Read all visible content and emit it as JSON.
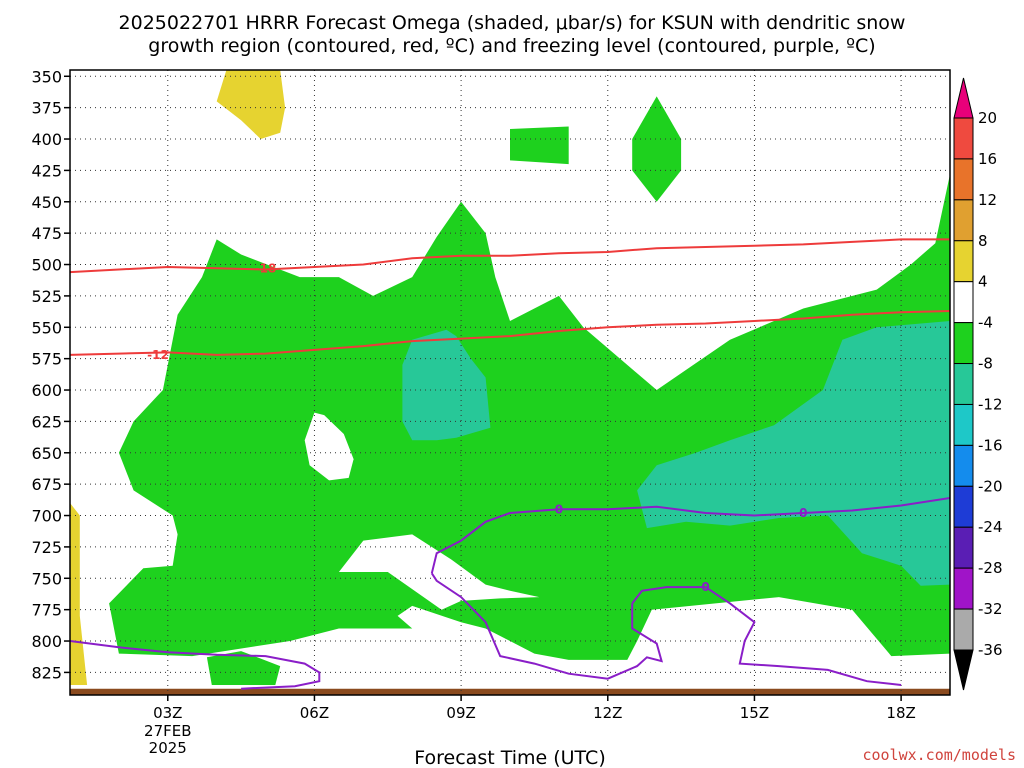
{
  "chart_data": {
    "type": "heatmap",
    "title_line1": "2025022701 HRRR Forecast Omega (shaded, μbar/s) for KSUN with dendritic snow",
    "title_line2": "growth region (contoured, red, ºC) and freezing level (contoured, purple, ºC)",
    "xlabel": "Forecast Time (UTC)",
    "ylabel": "",
    "x_axis": {
      "range_hours": [
        1,
        19
      ],
      "ticks": [
        {
          "hour": 3,
          "label": "03Z",
          "sub1": "27FEB",
          "sub2": "2025"
        },
        {
          "hour": 6,
          "label": "06Z"
        },
        {
          "hour": 9,
          "label": "09Z"
        },
        {
          "hour": 12,
          "label": "12Z"
        },
        {
          "hour": 15,
          "label": "15Z"
        },
        {
          "hour": 18,
          "label": "18Z"
        }
      ]
    },
    "y_axis": {
      "range_hpa": [
        345,
        843
      ],
      "ticks": [
        350,
        375,
        400,
        425,
        450,
        475,
        500,
        525,
        550,
        575,
        600,
        625,
        650,
        675,
        700,
        725,
        750,
        775,
        800,
        825
      ]
    },
    "grid": true,
    "colorbar": {
      "levels": [
        20,
        16,
        12,
        8,
        4,
        -4,
        -8,
        -12,
        -16,
        -20,
        -24,
        -28,
        -32,
        -36
      ],
      "colors": [
        "#e8007a",
        "#ef4a3f",
        "#e8732a",
        "#e0a030",
        "#e6d330",
        "#ffffff",
        "#1ed11e",
        "#27c898",
        "#1ec8c8",
        "#148ced",
        "#1e3cd6",
        "#5a1eb4",
        "#a014c8",
        "#aaaaaa",
        "#000000"
      ]
    },
    "shaded_regions": [
      {
        "color": "#1ed11e",
        "omega": "-4 to -8",
        "pts": [
          [
            3.1,
            700
          ],
          [
            2.3,
            680
          ],
          [
            2.0,
            650
          ],
          [
            2.3,
            625
          ],
          [
            2.9,
            600
          ],
          [
            3.2,
            540
          ],
          [
            3.7,
            510
          ],
          [
            4.0,
            480
          ],
          [
            4.5,
            492
          ],
          [
            5.7,
            510
          ],
          [
            6.5,
            510
          ],
          [
            7.2,
            525
          ],
          [
            8.0,
            510
          ],
          [
            8.5,
            478
          ],
          [
            9.0,
            450
          ],
          [
            9.5,
            475
          ],
          [
            9.7,
            510
          ],
          [
            10.0,
            545
          ],
          [
            11.0,
            525
          ],
          [
            11.5,
            550
          ],
          [
            13.0,
            600
          ],
          [
            14.5,
            560
          ],
          [
            16.0,
            535
          ],
          [
            17.5,
            520
          ],
          [
            18.2,
            500
          ],
          [
            18.7,
            483
          ],
          [
            19.0,
            428
          ],
          [
            19.0,
            810
          ],
          [
            17.8,
            812
          ],
          [
            17.0,
            775
          ],
          [
            15.5,
            765
          ],
          [
            12.9,
            775
          ],
          [
            12.6,
            800
          ],
          [
            12.4,
            815
          ],
          [
            11.2,
            815
          ],
          [
            10.5,
            810
          ],
          [
            10.0,
            800
          ],
          [
            9.5,
            790
          ],
          [
            9.0,
            785
          ],
          [
            8.0,
            772
          ],
          [
            7.7,
            780
          ],
          [
            8.0,
            790
          ],
          [
            6.5,
            790
          ],
          [
            5.5,
            800
          ],
          [
            3.5,
            812
          ],
          [
            2.0,
            810
          ],
          [
            1.8,
            770
          ],
          [
            2.5,
            742
          ],
          [
            3.1,
            740
          ],
          [
            3.2,
            715
          ]
        ]
      },
      {
        "color": "#27c898",
        "omega": "-8 to -12",
        "pts": [
          [
            8.7,
            552
          ],
          [
            8.9,
            557
          ],
          [
            9.2,
            575
          ],
          [
            9.5,
            590
          ],
          [
            9.6,
            630
          ],
          [
            8.9,
            638
          ],
          [
            8.5,
            640
          ],
          [
            8.0,
            640
          ],
          [
            7.8,
            625
          ],
          [
            7.8,
            580
          ],
          [
            8.0,
            560
          ]
        ]
      },
      {
        "color": "#27c898",
        "omega": "-8 to -12",
        "pts": [
          [
            16.8,
            560
          ],
          [
            17.5,
            550
          ],
          [
            19.0,
            545
          ],
          [
            19.0,
            755
          ],
          [
            18.4,
            756
          ],
          [
            18.0,
            740
          ],
          [
            17.2,
            730
          ],
          [
            16.5,
            700
          ],
          [
            15.5,
            702
          ],
          [
            14.5,
            708
          ],
          [
            13.6,
            705
          ],
          [
            12.8,
            710
          ],
          [
            12.6,
            680
          ],
          [
            13.0,
            660
          ],
          [
            13.8,
            650
          ],
          [
            14.5,
            640
          ],
          [
            15.4,
            628
          ],
          [
            16.4,
            600
          ]
        ]
      },
      {
        "color": "#ffffff",
        "omega": "4 to -4",
        "pts": [
          [
            6.2,
            620
          ],
          [
            6.0,
            618
          ],
          [
            5.8,
            640
          ],
          [
            5.9,
            660
          ],
          [
            6.3,
            672
          ],
          [
            6.7,
            670
          ],
          [
            6.8,
            655
          ],
          [
            6.6,
            635
          ]
        ]
      },
      {
        "color": "#ffffff",
        "omega": "4 to -4",
        "pts": [
          [
            6.5,
            745
          ],
          [
            7.0,
            720
          ],
          [
            8.0,
            715
          ],
          [
            8.8,
            735
          ],
          [
            9.5,
            755
          ],
          [
            10.0,
            760
          ],
          [
            10.6,
            765
          ],
          [
            9.8,
            766
          ],
          [
            9.0,
            768
          ],
          [
            8.6,
            775
          ],
          [
            7.5,
            745
          ]
        ]
      },
      {
        "color": "#1ed11e",
        "omega": "-4 to -8",
        "pts": [
          [
            10.0,
            392
          ],
          [
            11.2,
            390
          ],
          [
            11.2,
            420
          ],
          [
            10.0,
            417
          ]
        ]
      },
      {
        "color": "#1ed11e",
        "omega": "-4 to -8",
        "pts": [
          [
            13.0,
            366
          ],
          [
            13.5,
            400
          ],
          [
            13.5,
            425
          ],
          [
            13.0,
            450
          ],
          [
            12.5,
            425
          ],
          [
            12.5,
            400
          ]
        ]
      },
      {
        "color": "#1ed11e",
        "omega": "-4 to -8",
        "pts": [
          [
            3.8,
            813
          ],
          [
            4.5,
            808
          ],
          [
            5.3,
            820
          ],
          [
            5.2,
            835
          ],
          [
            3.9,
            835
          ]
        ]
      },
      {
        "color": "#e6d330",
        "omega": "4 to 8",
        "pts": [
          [
            4.2,
            345
          ],
          [
            5.3,
            345
          ],
          [
            5.4,
            375
          ],
          [
            5.3,
            395
          ],
          [
            4.9,
            400
          ],
          [
            4.5,
            385
          ],
          [
            4.0,
            370
          ]
        ]
      },
      {
        "color": "#e6d330",
        "omega": "4 to 8",
        "pts": [
          [
            1.0,
            690
          ],
          [
            1.2,
            700
          ],
          [
            1.2,
            780
          ],
          [
            1.35,
            835
          ],
          [
            1.0,
            835
          ]
        ]
      },
      {
        "color": "#8a4a1e",
        "omega": "ground",
        "pts": [
          [
            1.0,
            838
          ],
          [
            19.0,
            838
          ],
          [
            19.0,
            843
          ],
          [
            1.0,
            843
          ]
        ]
      }
    ],
    "dgz_contours": [
      {
        "label": "-18",
        "label_at": [
          5.0,
          503
        ],
        "pts": [
          [
            1.0,
            506
          ],
          [
            2.0,
            504
          ],
          [
            3.0,
            502
          ],
          [
            4.0,
            503
          ],
          [
            5.0,
            504
          ],
          [
            6.0,
            502
          ],
          [
            7.0,
            500
          ],
          [
            8.0,
            495
          ],
          [
            9.0,
            493
          ],
          [
            10.0,
            493
          ],
          [
            11.0,
            491
          ],
          [
            12.0,
            490
          ],
          [
            13.0,
            487
          ],
          [
            14.0,
            486
          ],
          [
            15.0,
            485
          ],
          [
            16.0,
            484
          ],
          [
            17.0,
            482
          ],
          [
            18.0,
            480
          ],
          [
            19.0,
            480
          ]
        ]
      },
      {
        "label": "-12",
        "label_at": [
          2.8,
          572
        ],
        "pts": [
          [
            1.0,
            572
          ],
          [
            2.0,
            571
          ],
          [
            3.0,
            570
          ],
          [
            4.0,
            572
          ],
          [
            5.0,
            571
          ],
          [
            6.0,
            568
          ],
          [
            7.0,
            565
          ],
          [
            8.0,
            561
          ],
          [
            9.0,
            559
          ],
          [
            10.0,
            557
          ],
          [
            11.0,
            553
          ],
          [
            12.0,
            550
          ],
          [
            13.0,
            548
          ],
          [
            14.0,
            547
          ],
          [
            15.0,
            545
          ],
          [
            16.0,
            543
          ],
          [
            17.0,
            540
          ],
          [
            18.0,
            538
          ],
          [
            19.0,
            537
          ]
        ]
      }
    ],
    "freezing_contours": [
      {
        "label": "0",
        "label_at": [
          11.0,
          695
        ],
        "pts": [
          [
            8.4,
            746
          ],
          [
            8.5,
            730
          ],
          [
            9.0,
            720
          ],
          [
            9.5,
            705
          ],
          [
            10.0,
            698
          ],
          [
            11.0,
            695
          ],
          [
            12.0,
            695
          ],
          [
            13.0,
            693
          ],
          [
            14.0,
            698
          ],
          [
            15.0,
            700
          ],
          [
            16.0,
            698
          ],
          [
            17.0,
            696
          ],
          [
            18.0,
            692
          ],
          [
            19.0,
            686
          ]
        ]
      },
      {
        "label": "0",
        "label_at": [
          16.0,
          698
        ],
        "pts": []
      },
      {
        "label": "0",
        "label_at": [
          14.0,
          757
        ],
        "pts": [
          [
            12.5,
            770
          ],
          [
            12.7,
            760
          ],
          [
            13.2,
            757
          ],
          [
            14.0,
            757
          ],
          [
            14.5,
            770
          ],
          [
            15.0,
            785
          ],
          [
            14.8,
            800
          ],
          [
            14.7,
            818
          ],
          [
            15.5,
            820
          ],
          [
            16.5,
            823
          ],
          [
            17.3,
            832
          ],
          [
            18.0,
            835
          ]
        ]
      },
      {
        "label": "",
        "label_at": [
          0,
          0
        ],
        "pts": [
          [
            8.4,
            746
          ],
          [
            8.5,
            752
          ],
          [
            9.0,
            765
          ],
          [
            9.5,
            785
          ],
          [
            9.8,
            812
          ],
          [
            10.5,
            818
          ],
          [
            11.2,
            826
          ],
          [
            12.0,
            830
          ],
          [
            12.6,
            820
          ],
          [
            12.8,
            813
          ],
          [
            13.1,
            816
          ],
          [
            13.0,
            802
          ],
          [
            12.5,
            790
          ],
          [
            12.5,
            770
          ]
        ]
      },
      {
        "label": "",
        "label_at": [
          0,
          0
        ],
        "pts": [
          [
            1.0,
            800
          ],
          [
            2.0,
            805
          ],
          [
            3.0,
            809
          ],
          [
            4.0,
            811
          ],
          [
            5.0,
            812
          ],
          [
            5.8,
            818
          ],
          [
            6.1,
            825
          ],
          [
            6.1,
            832
          ],
          [
            5.6,
            836
          ],
          [
            4.5,
            838
          ]
        ]
      }
    ]
  },
  "credit": "coolwx.com/models"
}
